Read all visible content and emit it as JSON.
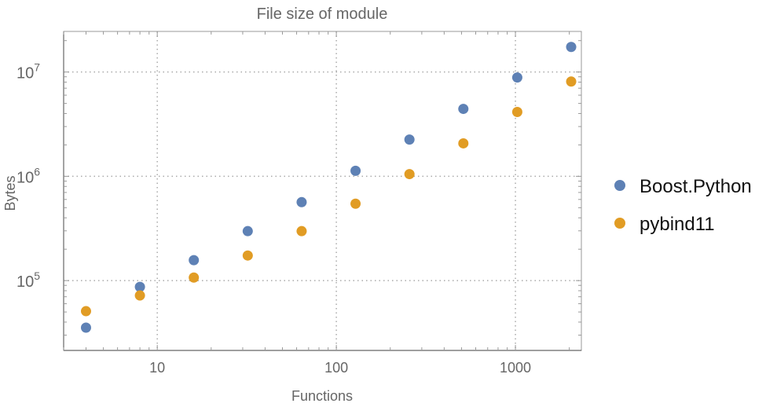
{
  "chart_data": {
    "type": "scatter",
    "title": "File size of module",
    "xlabel": "Functions",
    "ylabel": "Bytes",
    "xscale": "log",
    "yscale": "log",
    "xlim": [
      3.0,
      2335
    ],
    "ylim": [
      21400,
      24500000
    ],
    "xticks": [
      {
        "v": 10,
        "label": "10"
      },
      {
        "v": 100,
        "label": "100"
      },
      {
        "v": 1000,
        "label": "1000"
      }
    ],
    "yticks": [
      {
        "v": 100000,
        "base": "10",
        "exp": "5"
      },
      {
        "v": 1000000,
        "base": "10",
        "exp": "6"
      },
      {
        "v": 10000000,
        "base": "10",
        "exp": "7"
      }
    ],
    "grid": true,
    "legend_position": "right",
    "x": [
      4,
      8,
      16,
      32,
      64,
      128,
      256,
      512,
      1024,
      2048
    ],
    "series": [
      {
        "name": "Boost.Python",
        "color": "#5e81b5",
        "values": [
          35400,
          87000,
          157000,
          298000,
          565000,
          1130000,
          2250000,
          4430000,
          8860000,
          17400000
        ]
      },
      {
        "name": "pybind11",
        "color": "#e19c24",
        "values": [
          50900,
          72000,
          107000,
          174000,
          298000,
          546000,
          1050000,
          2070000,
          4140000,
          8100000
        ]
      }
    ]
  }
}
